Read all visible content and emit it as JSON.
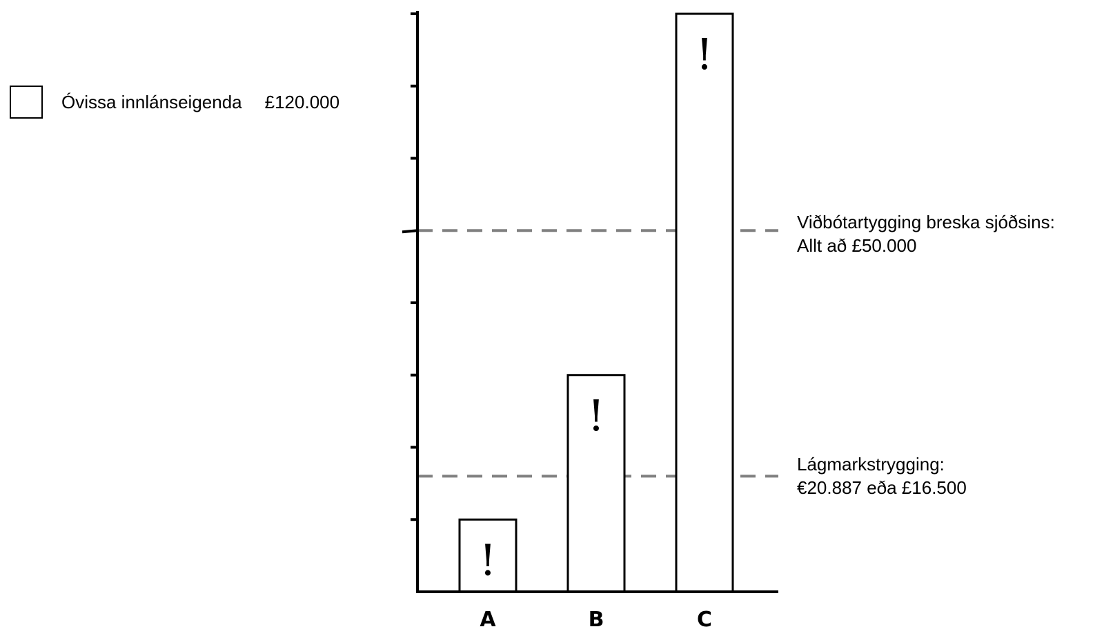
{
  "chart_data": {
    "type": "bar",
    "categories": [
      "A",
      "B",
      "C"
    ],
    "values": [
      20000,
      60000,
      160000
    ],
    "bar_marks": [
      "!",
      "!",
      "!"
    ],
    "ylim": [
      0,
      160000
    ],
    "y_major_ticks": [
      0,
      20000,
      40000,
      60000,
      80000,
      100000,
      120000,
      140000,
      160000
    ],
    "title": "",
    "xlabel": "",
    "ylabel": "",
    "grid": false,
    "legend": {
      "position": "top-left",
      "entries": [
        {
          "label": "Óvissa innlánseigenda",
          "value": "£120.000"
        }
      ]
    },
    "reference_lines": [
      {
        "value": 100000,
        "style": "dashed",
        "line1": "Viðbótartygging breska sjóðsins:",
        "line2": "Allt að £50.000"
      },
      {
        "value": 32000,
        "style": "dashed",
        "line1": "Lágmarkstrygging:",
        "line2": "€20.887 eða £16.500"
      }
    ]
  },
  "colors": {
    "axis": "#000000",
    "bar_fill": "#ffffff",
    "bar_stroke": "#000000",
    "reference_line": "#808080"
  }
}
